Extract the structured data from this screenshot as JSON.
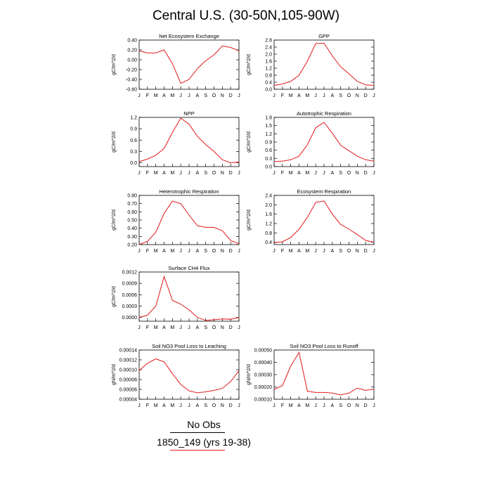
{
  "page": {
    "title": "Central U.S. (30-50N,105-90W)",
    "legend": {
      "obs_label": "No Obs",
      "obs_line_color": "#000000",
      "model_label": "1850_149 (yrs 19-38)",
      "model_line_color": "#e31a1c"
    }
  },
  "months": [
    "J",
    "F",
    "M",
    "A",
    "M",
    "J",
    "J",
    "A",
    "S",
    "O",
    "N",
    "D",
    "J"
  ],
  "line_color": "#e31a1c",
  "chart_data": [
    {
      "type": "line",
      "title": "Net Ecosystem Exchange",
      "ylabel": "gC/m^2/d",
      "ylim": [
        -0.6,
        0.4
      ],
      "yticks": [
        "0.40",
        "0.20",
        "0.00",
        "-0.20",
        "-0.40",
        "-0.60"
      ],
      "yvals": [
        0.4,
        0.2,
        0.0,
        -0.2,
        -0.4,
        -0.6
      ],
      "values": [
        0.18,
        0.14,
        0.14,
        0.2,
        -0.08,
        -0.48,
        -0.4,
        -0.18,
        -0.02,
        0.1,
        0.28,
        0.25,
        0.18
      ]
    },
    {
      "type": "line",
      "title": "GPP",
      "ylabel": "gC/m^2/d",
      "ylim": [
        0,
        2.8
      ],
      "yticks": [
        "2.8",
        "2.4",
        "2.0",
        "1.6",
        "1.2",
        "0.8",
        "0.4",
        "0.0"
      ],
      "yvals": [
        2.8,
        2.4,
        2.0,
        1.6,
        1.2,
        0.8,
        0.4,
        0.0
      ],
      "values": [
        0.22,
        0.3,
        0.45,
        0.8,
        1.6,
        2.6,
        2.62,
        1.9,
        1.28,
        0.88,
        0.45,
        0.25,
        0.22
      ]
    },
    {
      "type": "line",
      "title": "NPP",
      "ylabel": "gC/m^2/d",
      "ylim": [
        -0.1,
        1.2
      ],
      "yticks": [
        "1.2",
        "0.9",
        "0.6",
        "0.3",
        "0.0"
      ],
      "yvals": [
        1.2,
        0.9,
        0.6,
        0.3,
        0.0
      ],
      "values": [
        0.03,
        0.1,
        0.2,
        0.38,
        0.8,
        1.18,
        1.02,
        0.7,
        0.48,
        0.3,
        0.08,
        0.0,
        0.02
      ]
    },
    {
      "type": "line",
      "title": "Autotrophic Respiration",
      "ylabel": "gC/m^2/d",
      "ylim": [
        0,
        1.8
      ],
      "yticks": [
        "1.8",
        "1.5",
        "1.2",
        "0.9",
        "0.6",
        "0.3",
        "0.0"
      ],
      "yvals": [
        1.8,
        1.5,
        1.2,
        0.9,
        0.6,
        0.3,
        0.0
      ],
      "values": [
        0.18,
        0.2,
        0.25,
        0.38,
        0.8,
        1.42,
        1.62,
        1.22,
        0.78,
        0.58,
        0.38,
        0.25,
        0.2
      ]
    },
    {
      "type": "line",
      "title": "Heterotrophic Respiration",
      "ylabel": "gC/m^2/d",
      "ylim": [
        0.2,
        0.8
      ],
      "yticks": [
        "0.80",
        "0.70",
        "0.60",
        "0.50",
        "0.40",
        "0.30",
        "0.20"
      ],
      "yvals": [
        0.8,
        0.7,
        0.6,
        0.5,
        0.4,
        0.3,
        0.2
      ],
      "values": [
        0.2,
        0.24,
        0.35,
        0.58,
        0.73,
        0.7,
        0.56,
        0.43,
        0.41,
        0.41,
        0.37,
        0.25,
        0.21
      ]
    },
    {
      "type": "line",
      "title": "Ecosystem Respiration",
      "ylabel": "gC/m^2/d",
      "ylim": [
        0.3,
        2.4
      ],
      "yticks": [
        "2.4",
        "2.0",
        "1.6",
        "1.2",
        "0.8",
        "0.4"
      ],
      "yvals": [
        2.4,
        2.0,
        1.6,
        1.2,
        0.8,
        0.4
      ],
      "values": [
        0.38,
        0.42,
        0.6,
        0.96,
        1.46,
        2.1,
        2.16,
        1.6,
        1.16,
        0.96,
        0.73,
        0.48,
        0.4
      ]
    },
    {
      "type": "line",
      "title": "Surface CH4 Flux",
      "ylabel": "gC/m^2/d",
      "ylim": [
        -0.0001,
        0.0012
      ],
      "yticks": [
        "0.0012",
        "0.0009",
        "0.0006",
        "0.0003",
        "0.0000"
      ],
      "yvals": [
        0.0012,
        0.0009,
        0.0006,
        0.0003,
        0.0
      ],
      "values": [
        0.0,
        6e-05,
        0.0003,
        0.00108,
        0.00045,
        0.00035,
        0.0002,
        0.0,
        -8e-05,
        -6e-05,
        -4e-05,
        -5e-05,
        0.0
      ]
    },
    {
      "type": "line",
      "title": "Soil NO3 Pool Loss to Leaching",
      "ylabel": "gN/m^2/d",
      "ylim": [
        4e-05,
        0.00014
      ],
      "yticks": [
        "0.00014",
        "0.00012",
        "0.00010",
        "0.00008",
        "0.00006",
        "0.00004"
      ],
      "yvals": [
        0.00014,
        0.00012,
        0.0001,
        8e-05,
        6e-05,
        4e-05
      ],
      "values": [
        9.8e-05,
        0.000113,
        0.000122,
        0.000116,
        9.2e-05,
        7e-05,
        5.7e-05,
        5.3e-05,
        5.5e-05,
        5.8e-05,
        6.2e-05,
        7.6e-05,
        9.8e-05
      ]
    },
    {
      "type": "line",
      "title": "Soil NO3 Pool Loss to Runoff",
      "ylabel": "gN/m^2/d",
      "ylim": [
        0.0001,
        0.0005
      ],
      "yticks": [
        "0.00050",
        "0.00040",
        "0.00030",
        "0.00020",
        "0.00010"
      ],
      "yvals": [
        0.0005,
        0.0004,
        0.0003,
        0.0002,
        0.0001
      ],
      "values": [
        0.00018,
        0.00021,
        0.00037,
        0.00048,
        0.000165,
        0.000155,
        0.000155,
        0.00015,
        0.000135,
        0.00015,
        0.00019,
        0.000172,
        0.000182
      ]
    }
  ]
}
